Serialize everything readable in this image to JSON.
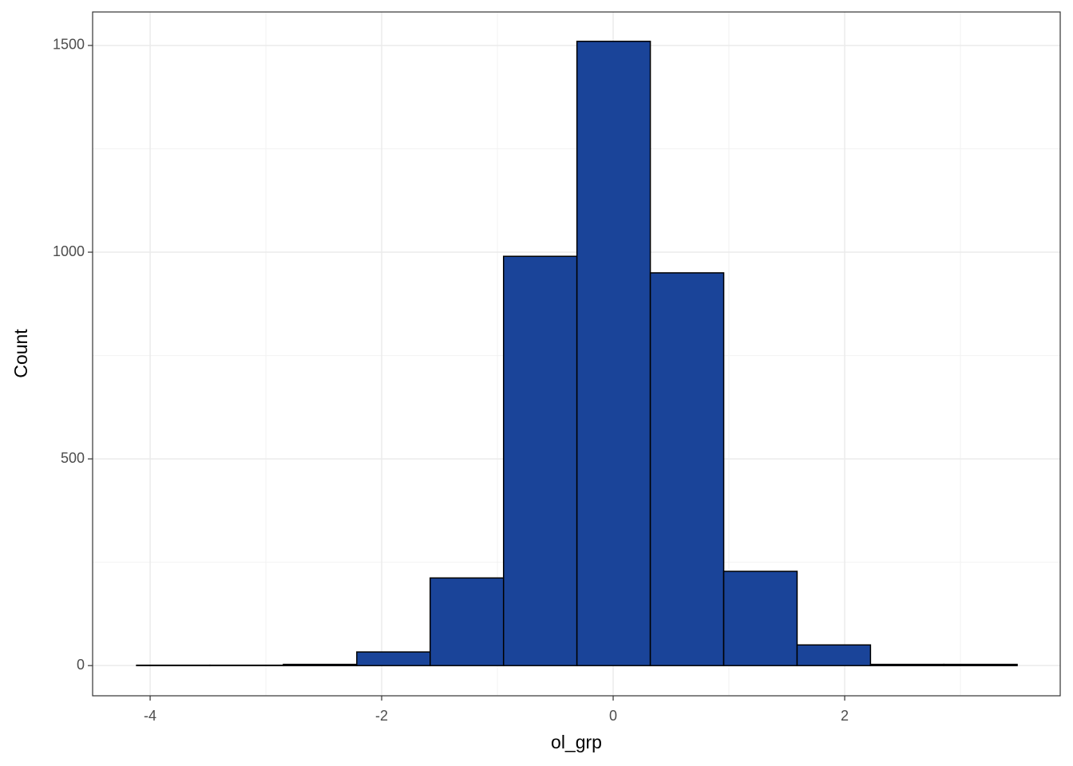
{
  "chart_data": {
    "type": "histogram",
    "x_label": "ol_grp",
    "y_label": "Count",
    "bins": [
      -4.117,
      -3.483,
      -2.849,
      -2.215,
      -1.581,
      -0.947,
      -0.313,
      0.321,
      0.955,
      1.589,
      2.223,
      2.857,
      3.49
    ],
    "values": [
      1,
      1,
      3,
      33,
      212,
      990,
      1510,
      950,
      228,
      50,
      3,
      3
    ],
    "color": "#1a4499",
    "edge_color": "#000000",
    "xlim": [
      -4.497,
      3.862
    ],
    "xticks": [
      -4,
      -2,
      0,
      2
    ],
    "ylim": [
      -73,
      1581
    ],
    "yticks": [
      0,
      500,
      1000,
      1500
    ],
    "grid": true
  }
}
